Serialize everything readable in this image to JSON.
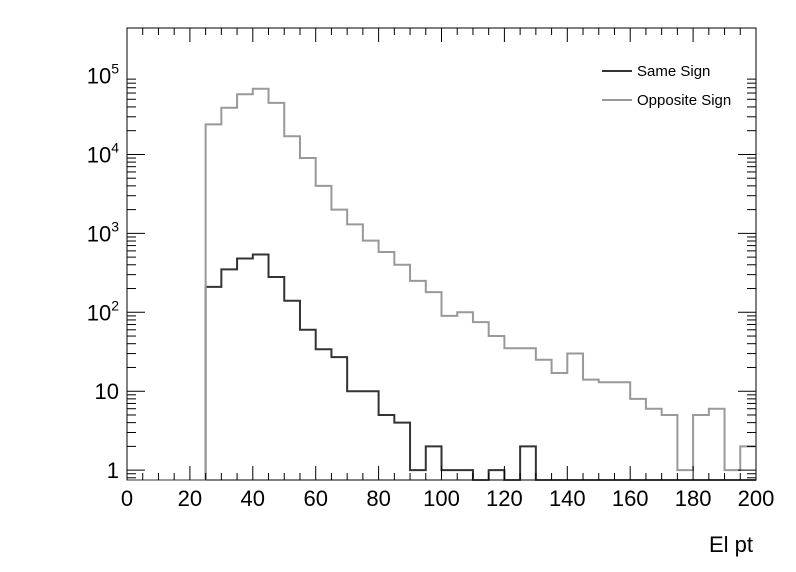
{
  "chart_data": {
    "type": "histogram",
    "title": "",
    "xlabel": "El pt",
    "ylabel": "",
    "xlim": [
      0,
      200
    ],
    "ylim": [
      0.75,
      400000
    ],
    "yscale": "log",
    "grid": false,
    "legend_position": "top-right",
    "bin_edges": [
      0,
      5,
      10,
      15,
      20,
      25,
      30,
      35,
      40,
      45,
      50,
      55,
      60,
      65,
      70,
      75,
      80,
      85,
      90,
      95,
      100,
      105,
      110,
      115,
      120,
      125,
      130,
      135,
      140,
      145,
      150,
      155,
      160,
      165,
      170,
      175,
      180,
      185,
      190,
      195,
      200
    ],
    "x_ticks": [
      0,
      20,
      40,
      60,
      80,
      100,
      120,
      140,
      160,
      180,
      200
    ],
    "y_ticks": [
      {
        "value": 1,
        "base": "1",
        "exp": ""
      },
      {
        "value": 10,
        "base": "10",
        "exp": ""
      },
      {
        "value": 100,
        "base": "10",
        "exp": "2"
      },
      {
        "value": 1000,
        "base": "10",
        "exp": "3"
      },
      {
        "value": 10000,
        "base": "10",
        "exp": "4"
      },
      {
        "value": 100000,
        "base": "10",
        "exp": "5"
      }
    ],
    "series": [
      {
        "name": "Same Sign",
        "color": "#333333",
        "values": [
          0,
          0,
          0,
          0,
          0,
          210,
          350,
          480,
          540,
          280,
          140,
          60,
          34,
          27,
          10,
          10,
          5,
          4,
          1,
          2,
          1,
          1,
          0,
          1,
          0,
          2,
          0,
          0,
          0,
          0,
          0,
          0,
          0,
          0,
          0,
          0,
          0,
          0,
          0,
          0
        ]
      },
      {
        "name": "Opposite Sign",
        "color": "#999999",
        "values": [
          0,
          0,
          0,
          0,
          0,
          24000,
          39000,
          58000,
          68000,
          45000,
          17000,
          9000,
          4000,
          2000,
          1300,
          810,
          580,
          400,
          250,
          180,
          90,
          100,
          75,
          50,
          35,
          35,
          25,
          17,
          30,
          14,
          13,
          13,
          8,
          6,
          5,
          1,
          5,
          6,
          1,
          2
        ]
      }
    ]
  }
}
